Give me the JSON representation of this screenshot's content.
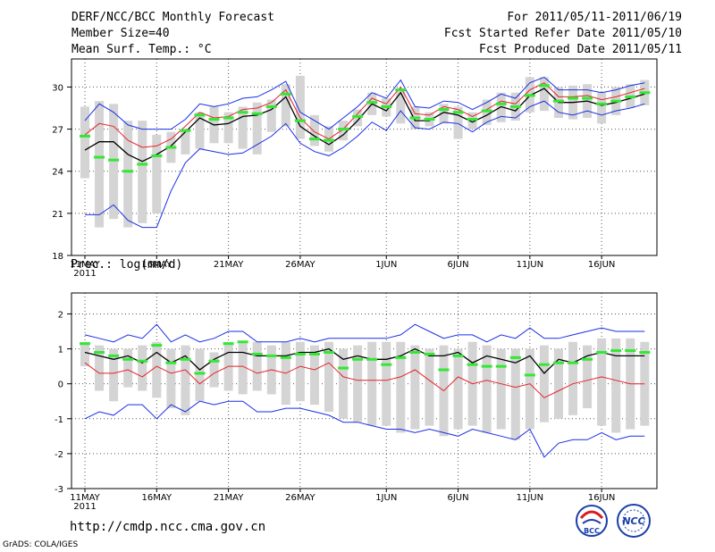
{
  "header": {
    "title": "DERF/NCC/BCC Monthly Forecast",
    "member_size": "Member Size=40",
    "variable": "Mean Surf. Temp.: °C",
    "period": "For 2011/05/11-2011/06/19",
    "started": "Fcst Started Refer Date 2011/05/10",
    "produced": "Fcst Produced Date 2011/05/11"
  },
  "footer": {
    "url": "http://cmdp.ncc.cma.gov.cn",
    "grads": "GrADS: COLA/IGES",
    "logo_bcc": "BCC",
    "logo_ncc": "NCC"
  },
  "colors": {
    "box": "#d4d4d4",
    "mean": "#000000",
    "red": "#e8202a",
    "blue": "#1a2ee6",
    "green": "#33e833",
    "grid": "#555555"
  },
  "chart_data": [
    {
      "type": "box-timeseries",
      "ylabel": "Mean Surf. Temp.: °C",
      "ylim": [
        18,
        32
      ],
      "yticks": [
        18,
        21,
        24,
        27,
        30
      ],
      "xticks": [
        "11MAY",
        "16MAY",
        "21MAY",
        "26MAY",
        "1JUN",
        "6JUN",
        "11JUN",
        "16JUN"
      ],
      "year_label": "2011",
      "x": [
        1,
        2,
        3,
        4,
        5,
        6,
        7,
        8,
        9,
        10,
        11,
        12,
        13,
        14,
        15,
        16,
        17,
        18,
        19,
        20,
        21,
        22,
        23,
        24,
        25,
        26,
        27,
        28,
        29,
        30,
        31,
        32,
        33,
        34,
        35,
        36,
        37,
        38,
        39,
        40
      ],
      "box_high": [
        28.6,
        29.0,
        28.8,
        27.6,
        27.6,
        26.6,
        26.8,
        27.0,
        28.2,
        28.6,
        28.2,
        28.6,
        28.9,
        29.1,
        30.2,
        30.8,
        28.0,
        27.2,
        27.6,
        28.4,
        29.6,
        29.2,
        29.7,
        28.6,
        28.2,
        28.8,
        28.6,
        28.2,
        29.1,
        29.6,
        29.6,
        30.7,
        30.7,
        30.0,
        30.1,
        30.2,
        29.6,
        30.0,
        30.2,
        30.5
      ],
      "box_low": [
        23.5,
        20.0,
        20.6,
        20.0,
        20.3,
        21.0,
        24.6,
        25.2,
        25.6,
        26.0,
        26.0,
        25.6,
        25.2,
        26.8,
        27.2,
        26.3,
        25.8,
        25.4,
        26.2,
        27.2,
        28.0,
        27.9,
        27.4,
        27.0,
        27.2,
        27.4,
        26.3,
        27.0,
        27.3,
        27.5,
        27.6,
        28.2,
        28.3,
        27.8,
        27.7,
        27.8,
        27.4,
        28.0,
        28.5,
        28.7
      ],
      "mean": [
        25.5,
        26.1,
        26.1,
        25.2,
        24.7,
        25.2,
        25.8,
        26.8,
        27.8,
        27.3,
        27.4,
        27.9,
        28.0,
        28.4,
        29.3,
        27.2,
        26.5,
        25.9,
        26.6,
        27.6,
        28.8,
        28.3,
        29.6,
        27.6,
        27.6,
        28.2,
        28.0,
        27.5,
        28.0,
        28.6,
        28.3,
        29.4,
        29.9,
        28.9,
        28.9,
        29.0,
        28.7,
        28.9,
        29.2,
        29.5
      ],
      "red": [
        26.6,
        27.4,
        27.2,
        26.2,
        25.7,
        25.8,
        26.3,
        27.2,
        28.2,
        27.8,
        27.9,
        28.4,
        28.5,
        28.9,
        29.8,
        27.8,
        26.8,
        26.3,
        27.0,
        28.1,
        29.2,
        28.8,
        30.0,
        28.1,
        28.0,
        28.6,
        28.4,
        27.9,
        28.4,
        29.0,
        28.8,
        29.8,
        30.3,
        29.3,
        29.3,
        29.4,
        29.1,
        29.3,
        29.6,
        29.9
      ],
      "blue_top": [
        27.6,
        28.8,
        28.2,
        27.3,
        27.0,
        27.0,
        27.0,
        27.7,
        28.8,
        28.6,
        28.8,
        29.2,
        29.3,
        29.8,
        30.4,
        28.2,
        27.6,
        27.0,
        27.8,
        28.6,
        29.6,
        29.2,
        30.5,
        28.6,
        28.5,
        29.0,
        28.9,
        28.4,
        28.9,
        29.5,
        29.2,
        30.3,
        30.7,
        29.8,
        29.8,
        29.8,
        29.6,
        29.8,
        30.1,
        30.3
      ],
      "blue_bottom": [
        20.9,
        20.9,
        21.6,
        20.5,
        20.0,
        20.0,
        22.6,
        24.6,
        25.6,
        25.4,
        25.2,
        25.3,
        25.9,
        26.5,
        27.4,
        26.0,
        25.4,
        25.1,
        25.7,
        26.5,
        27.5,
        26.9,
        28.3,
        27.1,
        27.0,
        27.5,
        27.4,
        26.8,
        27.5,
        27.9,
        27.8,
        28.6,
        29.0,
        28.2,
        28.0,
        28.3,
        28.0,
        28.3,
        28.5,
        28.8
      ],
      "green": [
        26.5,
        25.0,
        24.8,
        24.0,
        24.5,
        25.1,
        25.7,
        26.9,
        28.0,
        27.7,
        27.8,
        28.2,
        28.1,
        28.6,
        29.5,
        27.6,
        26.3,
        26.2,
        27.0,
        27.9,
        28.9,
        28.6,
        29.8,
        27.8,
        27.7,
        28.4,
        28.2,
        27.7,
        28.3,
        28.8,
        28.6,
        29.4,
        30.1,
        29.0,
        29.2,
        29.2,
        28.8,
        29.0,
        29.3,
        29.6
      ]
    },
    {
      "type": "box-timeseries",
      "ylabel": "Prec.: log(mm/d)",
      "ylim": [
        -3,
        2.6
      ],
      "yticks": [
        -3,
        -2,
        -1,
        0,
        1,
        2
      ],
      "xticks": [
        "11MAY",
        "16MAY",
        "21MAY",
        "26MAY",
        "1JUN",
        "6JUN",
        "11JUN",
        "16JUN"
      ],
      "year_label": "2011",
      "x": [
        1,
        2,
        3,
        4,
        5,
        6,
        7,
        8,
        9,
        10,
        11,
        12,
        13,
        14,
        15,
        16,
        17,
        18,
        19,
        20,
        21,
        22,
        23,
        24,
        25,
        26,
        27,
        28,
        29,
        30,
        31,
        32,
        33,
        34,
        35,
        36,
        37,
        38,
        39,
        40
      ],
      "box_high": [
        1.2,
        1.1,
        1.0,
        1.0,
        1.1,
        1.2,
        1.0,
        1.1,
        1.0,
        0.9,
        1.2,
        1.2,
        1.2,
        1.1,
        1.2,
        1.2,
        1.1,
        1.2,
        1.0,
        1.1,
        1.2,
        1.2,
        1.2,
        1.1,
        1.0,
        1.1,
        1.0,
        1.2,
        1.1,
        1.0,
        1.0,
        1.0,
        1.1,
        1.0,
        1.2,
        1.1,
        1.3,
        1.3,
        1.3,
        1.2
      ],
      "box_low": [
        0.5,
        -0.2,
        -0.5,
        -0.1,
        -0.2,
        -0.4,
        -0.7,
        -0.9,
        -0.5,
        -0.1,
        -0.2,
        -0.3,
        -0.2,
        -0.3,
        -0.6,
        -0.5,
        -0.6,
        -0.8,
        -1.0,
        -1.1,
        -1.2,
        -1.2,
        -1.4,
        -1.3,
        -1.2,
        -1.5,
        -1.3,
        -1.2,
        -1.4,
        -1.3,
        -1.6,
        -1.3,
        -1.1,
        -1.0,
        -0.9,
        -0.7,
        -1.2,
        -1.4,
        -1.3,
        -1.2
      ],
      "mean": [
        0.9,
        0.8,
        0.7,
        0.8,
        0.6,
        0.9,
        0.6,
        0.8,
        0.4,
        0.7,
        0.9,
        0.9,
        0.8,
        0.8,
        0.8,
        0.9,
        0.9,
        1.0,
        0.7,
        0.8,
        0.7,
        0.7,
        0.8,
        1.0,
        0.8,
        0.8,
        0.9,
        0.6,
        0.8,
        0.7,
        0.6,
        0.8,
        0.3,
        0.7,
        0.6,
        0.8,
        0.9,
        0.8,
        0.8,
        0.8
      ],
      "red": [
        0.6,
        0.3,
        0.3,
        0.4,
        0.2,
        0.5,
        0.3,
        0.4,
        0.0,
        0.3,
        0.5,
        0.5,
        0.3,
        0.4,
        0.3,
        0.5,
        0.4,
        0.6,
        0.2,
        0.1,
        0.1,
        0.1,
        0.2,
        0.4,
        0.1,
        -0.2,
        0.2,
        0.0,
        0.1,
        0.0,
        -0.1,
        0.0,
        -0.4,
        -0.2,
        0.0,
        0.1,
        0.2,
        0.1,
        0.0,
        0.0
      ],
      "blue_top": [
        1.4,
        1.3,
        1.2,
        1.4,
        1.3,
        1.7,
        1.2,
        1.4,
        1.2,
        1.3,
        1.5,
        1.5,
        1.2,
        1.2,
        1.2,
        1.3,
        1.2,
        1.3,
        1.3,
        1.3,
        1.3,
        1.3,
        1.4,
        1.7,
        1.5,
        1.3,
        1.4,
        1.4,
        1.2,
        1.4,
        1.3,
        1.6,
        1.3,
        1.3,
        1.4,
        1.5,
        1.6,
        1.5,
        1.5,
        1.5
      ],
      "blue_bottom": [
        -1.0,
        -0.8,
        -0.9,
        -0.6,
        -0.6,
        -1.0,
        -0.6,
        -0.8,
        -0.5,
        -0.6,
        -0.5,
        -0.5,
        -0.8,
        -0.8,
        -0.7,
        -0.7,
        -0.8,
        -0.9,
        -1.1,
        -1.1,
        -1.2,
        -1.3,
        -1.3,
        -1.4,
        -1.3,
        -1.4,
        -1.5,
        -1.3,
        -1.4,
        -1.5,
        -1.6,
        -1.3,
        -2.1,
        -1.7,
        -1.6,
        -1.6,
        -1.4,
        -1.6,
        -1.5,
        -1.5
      ],
      "green": [
        1.15,
        0.9,
        0.8,
        0.7,
        0.65,
        1.1,
        0.6,
        0.7,
        0.3,
        0.65,
        1.15,
        1.2,
        0.85,
        0.8,
        0.75,
        0.85,
        0.85,
        0.9,
        0.45,
        0.7,
        0.7,
        0.55,
        0.75,
        0.9,
        0.85,
        0.4,
        0.8,
        0.55,
        0.5,
        0.5,
        0.75,
        0.25,
        0.55,
        0.6,
        0.6,
        0.7,
        0.9,
        0.95,
        0.95,
        0.9
      ]
    }
  ]
}
